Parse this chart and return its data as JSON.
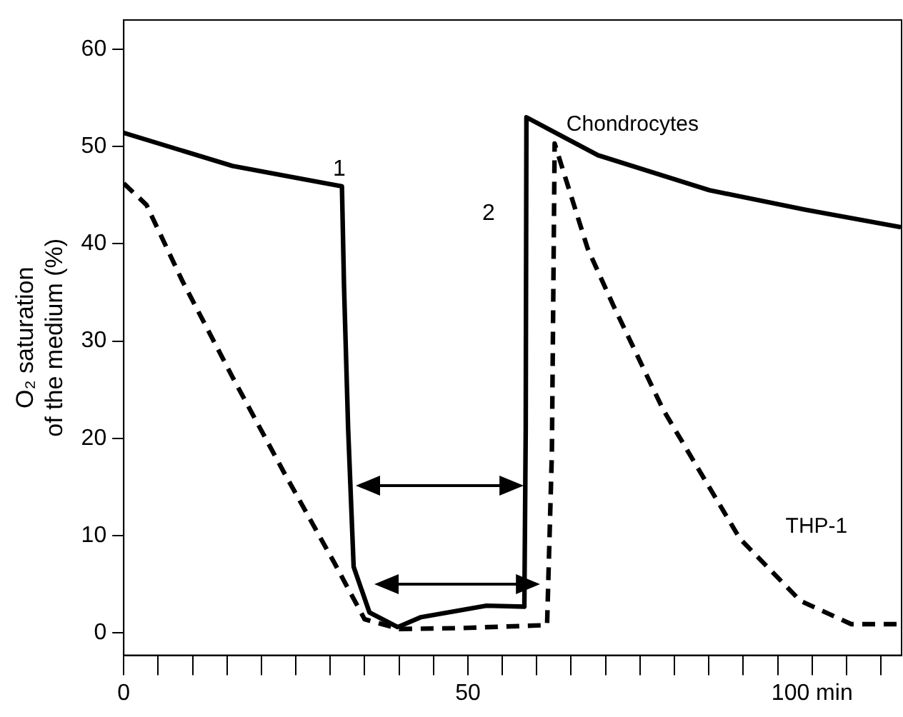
{
  "chart_data": {
    "type": "line",
    "ylabel": "O₂ saturation\nof the medium (%)",
    "xlim": [
      0,
      113
    ],
    "ylim": [
      -2.3,
      63
    ],
    "xticks": [
      0,
      {
        "value": 5,
        "label": null
      },
      {
        "value": 10,
        "label": null
      },
      {
        "value": 15,
        "label": null
      },
      {
        "value": 20,
        "label": null
      },
      {
        "value": 25,
        "label": null
      },
      {
        "value": 30,
        "label": null
      },
      {
        "value": 35,
        "label": null
      },
      {
        "value": 40,
        "label": null
      },
      {
        "value": 45,
        "label": null
      },
      50,
      {
        "value": 55,
        "label": null
      },
      {
        "value": 60,
        "label": null
      },
      {
        "value": 65,
        "label": null
      },
      {
        "value": 70,
        "label": null
      },
      {
        "value": 75,
        "label": null
      },
      {
        "value": 80,
        "label": null
      },
      {
        "value": 85,
        "label": null
      },
      {
        "value": 90,
        "label": null
      },
      {
        "value": 95,
        "label": null
      },
      {
        "value": 100,
        "label": "100 min"
      },
      {
        "value": 105,
        "label": null
      },
      {
        "value": 110,
        "label": null
      }
    ],
    "yticks": [
      0,
      10,
      20,
      30,
      40,
      50,
      60
    ],
    "grid": false,
    "legend": false,
    "marker": "none",
    "series": [
      {
        "name": "Chondrocytes",
        "color": "#000000",
        "line_style": "solid",
        "x": [
          0,
          15.8,
          31.7,
          32.0,
          32.6,
          33.4,
          35.7,
          39.8,
          43.1,
          52.7,
          58.2,
          58.4,
          58.5,
          68.9,
          85.1,
          99.0,
          112.9
        ],
        "values": [
          51.4,
          48.0,
          45.9,
          35.7,
          21.0,
          6.8,
          2.1,
          0.6,
          1.6,
          2.8,
          2.7,
          21.0,
          53.0,
          49.1,
          45.5,
          43.5,
          41.7
        ]
      },
      {
        "name": "THP-1",
        "color": "#000000",
        "line_style": "dashed",
        "x": [
          0,
          3.3,
          8.5,
          15.8,
          23.2,
          30.6,
          35.0,
          40.1,
          49.0,
          61.5,
          62.2,
          62.6,
          67.4,
          71.1,
          78.4,
          89.5,
          98.3,
          105.7,
          112.9
        ],
        "values": [
          46.2,
          44.0,
          36.2,
          26.3,
          16.6,
          7.2,
          1.4,
          0.4,
          0.5,
          0.8,
          18.5,
          50.3,
          39.5,
          33.7,
          22.9,
          9.7,
          3.3,
          0.9,
          0.9
        ]
      }
    ],
    "annotations": [
      "1",
      "2"
    ]
  }
}
